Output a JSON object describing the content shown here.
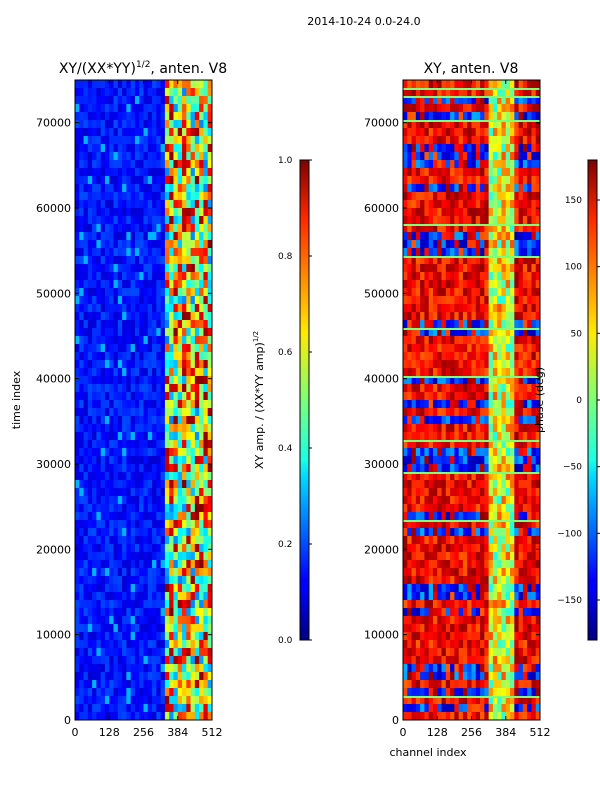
{
  "suptitle": "2014-10-24 0.0-24.0",
  "colors": {
    "frame": "#000000",
    "background": "#ffffff"
  },
  "chart_data": [
    {
      "type": "heatmap",
      "title": "XY/(XX*YY)",
      "title_exponent": "1/2",
      "title_suffix": ", anten. V8",
      "xlabel": "",
      "ylabel": "time index",
      "xlim": [
        0,
        512
      ],
      "ylim": [
        0,
        75000
      ],
      "xticks": [
        0,
        128,
        256,
        384,
        512
      ],
      "yticks": [
        0,
        10000,
        20000,
        30000,
        40000,
        50000,
        60000,
        70000
      ],
      "colormap": "jet",
      "colorbar": {
        "label": "XY amp. / (XX*YY amp)",
        "label_exponent": "1/2",
        "range": [
          0.0,
          1.0
        ],
        "ticks": [
          "0.0",
          "0.2",
          "0.4",
          "0.6",
          "0.8",
          "1.0"
        ]
      }
    },
    {
      "type": "heatmap",
      "title": "XY, anten. V8",
      "xlabel": "channel index",
      "ylabel": "",
      "xlim": [
        0,
        512
      ],
      "ylim": [
        0,
        75000
      ],
      "xticks": [
        0,
        128,
        256,
        384,
        512
      ],
      "yticks": [
        0,
        10000,
        20000,
        30000,
        40000,
        50000,
        60000,
        70000
      ],
      "colormap": "jet",
      "colorbar": {
        "label": "phase (deg)",
        "range": [
          -180,
          180
        ],
        "ticks": [
          "−150",
          "−100",
          "−50",
          "0",
          "50",
          "100",
          "150"
        ]
      }
    }
  ]
}
